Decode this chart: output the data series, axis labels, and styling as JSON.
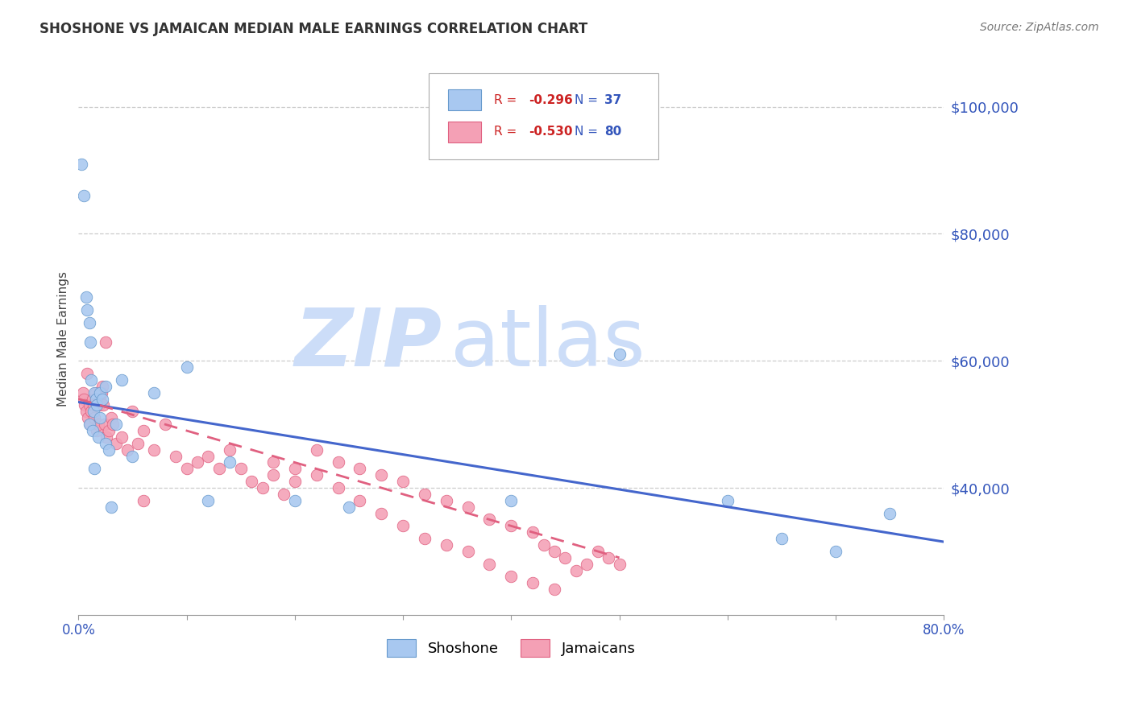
{
  "title": "SHOSHONE VS JAMAICAN MEDIAN MALE EARNINGS CORRELATION CHART",
  "source": "Source: ZipAtlas.com",
  "ylabel": "Median Male Earnings",
  "yticks": [
    40000,
    60000,
    80000,
    100000
  ],
  "ytick_labels": [
    "$40,000",
    "$60,000",
    "$80,000",
    "$100,000"
  ],
  "xlim": [
    0.0,
    80.0
  ],
  "ylim": [
    20000,
    107000
  ],
  "shoshone_color": "#a8c8f0",
  "jamaican_color": "#f4a0b5",
  "shoshone_edge": "#6699cc",
  "jamaican_edge": "#e06080",
  "blue_line_color": "#4466cc",
  "pink_line_color": "#e06080",
  "watermark": "ZIPatlas",
  "watermark_color": "#ccddf8",
  "shoshone_x": [
    0.3,
    0.5,
    0.7,
    0.8,
    1.0,
    1.0,
    1.1,
    1.2,
    1.3,
    1.4,
    1.5,
    1.6,
    1.7,
    1.8,
    2.0,
    2.0,
    2.2,
    2.5,
    2.8,
    3.0,
    3.5,
    4.0,
    5.0,
    7.0,
    10.0,
    12.0,
    14.0,
    20.0,
    25.0,
    40.0,
    50.0,
    60.0,
    65.0,
    70.0,
    75.0,
    1.5,
    2.5
  ],
  "shoshone_y": [
    91000,
    86000,
    70000,
    68000,
    66000,
    50000,
    63000,
    57000,
    49000,
    52000,
    55000,
    54000,
    53000,
    48000,
    51000,
    55000,
    54000,
    47000,
    46000,
    37000,
    50000,
    57000,
    45000,
    55000,
    59000,
    38000,
    44000,
    38000,
    37000,
    38000,
    61000,
    38000,
    32000,
    30000,
    36000,
    43000,
    56000
  ],
  "jamaican_x": [
    0.4,
    0.5,
    0.6,
    0.7,
    0.8,
    0.9,
    1.0,
    1.1,
    1.2,
    1.3,
    1.4,
    1.5,
    1.6,
    1.7,
    1.8,
    1.9,
    2.0,
    2.1,
    2.2,
    2.3,
    2.4,
    2.5,
    2.6,
    2.8,
    3.0,
    3.2,
    3.5,
    4.0,
    4.5,
    5.0,
    5.5,
    6.0,
    7.0,
    8.0,
    9.0,
    10.0,
    11.0,
    12.0,
    13.0,
    14.0,
    15.0,
    16.0,
    17.0,
    18.0,
    19.0,
    20.0,
    22.0,
    24.0,
    26.0,
    28.0,
    30.0,
    32.0,
    34.0,
    36.0,
    38.0,
    40.0,
    42.0,
    43.0,
    44.0,
    45.0,
    46.0,
    47.0,
    48.0,
    49.0,
    50.0,
    6.0,
    18.0,
    20.0,
    22.0,
    24.0,
    26.0,
    28.0,
    30.0,
    32.0,
    34.0,
    36.0,
    38.0,
    40.0,
    42.0,
    44.0
  ],
  "jamaican_y": [
    55000,
    54000,
    53000,
    52000,
    58000,
    51000,
    53000,
    50000,
    52000,
    54000,
    53000,
    51000,
    55000,
    49000,
    50000,
    53000,
    54000,
    55000,
    56000,
    53000,
    50000,
    63000,
    48000,
    49000,
    51000,
    50000,
    47000,
    48000,
    46000,
    52000,
    47000,
    49000,
    46000,
    50000,
    45000,
    43000,
    44000,
    45000,
    43000,
    46000,
    43000,
    41000,
    40000,
    42000,
    39000,
    41000,
    46000,
    44000,
    43000,
    42000,
    41000,
    39000,
    38000,
    37000,
    35000,
    34000,
    33000,
    31000,
    30000,
    29000,
    27000,
    28000,
    30000,
    29000,
    28000,
    38000,
    44000,
    43000,
    42000,
    40000,
    38000,
    36000,
    34000,
    32000,
    31000,
    30000,
    28000,
    26000,
    25000,
    24000
  ],
  "shoshone_trend_x": [
    0.0,
    80.0
  ],
  "shoshone_trend_y": [
    53500,
    31500
  ],
  "jamaican_trend_x": [
    0.0,
    50.0
  ],
  "jamaican_trend_y": [
    54000,
    29000
  ]
}
